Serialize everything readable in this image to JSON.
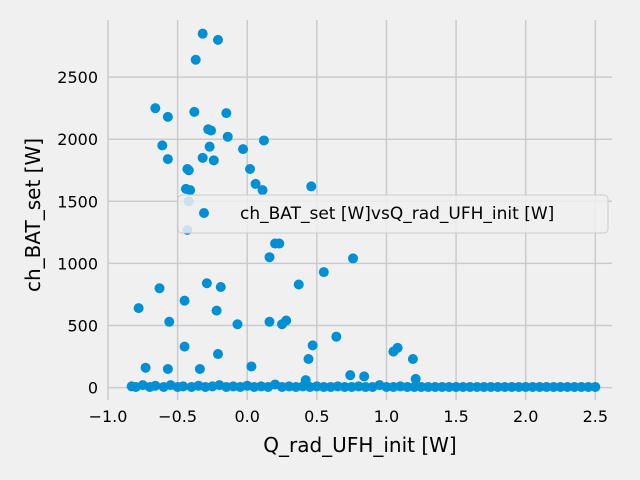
{
  "chart_data": {
    "type": "scatter",
    "title": "",
    "xlabel": "Q_rad_UFH_init [W]",
    "ylabel": "ch_BAT_set [W]",
    "xlim": [
      -1.0,
      2.62
    ],
    "ylim": [
      -100,
      2960
    ],
    "x_ticks": [
      -1.0,
      -0.5,
      0.0,
      0.5,
      1.0,
      1.5,
      2.0,
      2.5
    ],
    "x_tick_labels": [
      "−1.0",
      "−0.5",
      "0.0",
      "0.5",
      "1.0",
      "1.5",
      "2.0",
      "2.5"
    ],
    "y_ticks": [
      0,
      500,
      1000,
      1500,
      2000,
      2500
    ],
    "y_tick_labels": [
      "0",
      "500",
      "1000",
      "1500",
      "2000",
      "2500"
    ],
    "grid": true,
    "legend_position": "center-right",
    "marker_color": "#008fd5",
    "series": [
      {
        "name": "ch_BAT_set [W]vsQ_rad_UFH_init [W]",
        "points": [
          [
            -0.32,
            2850
          ],
          [
            -0.21,
            2800
          ],
          [
            -0.37,
            2640
          ],
          [
            -0.66,
            2250
          ],
          [
            -0.38,
            2220
          ],
          [
            -0.57,
            2180
          ],
          [
            -0.15,
            2210
          ],
          [
            -0.28,
            2080
          ],
          [
            -0.26,
            2070
          ],
          [
            -0.14,
            2020
          ],
          [
            0.12,
            1990
          ],
          [
            -0.61,
            1950
          ],
          [
            -0.27,
            1940
          ],
          [
            -0.03,
            1920
          ],
          [
            -0.57,
            1840
          ],
          [
            -0.32,
            1850
          ],
          [
            -0.24,
            1830
          ],
          [
            -0.43,
            1760
          ],
          [
            -0.42,
            1750
          ],
          [
            0.02,
            1760
          ],
          [
            0.06,
            1640
          ],
          [
            0.11,
            1590
          ],
          [
            0.46,
            1620
          ],
          [
            -0.44,
            1600
          ],
          [
            -0.41,
            1590
          ],
          [
            -0.42,
            1500
          ],
          [
            -0.43,
            1270
          ],
          [
            0.2,
            1160
          ],
          [
            0.23,
            1160
          ],
          [
            0.16,
            1050
          ],
          [
            0.76,
            1040
          ],
          [
            0.55,
            930
          ],
          [
            -0.29,
            840
          ],
          [
            0.37,
            830
          ],
          [
            -0.63,
            800
          ],
          [
            -0.19,
            810
          ],
          [
            -0.45,
            700
          ],
          [
            -0.78,
            640
          ],
          [
            -0.22,
            620
          ],
          [
            0.28,
            540
          ],
          [
            -0.56,
            530
          ],
          [
            0.16,
            530
          ],
          [
            -0.07,
            510
          ],
          [
            0.25,
            510
          ],
          [
            0.64,
            410
          ],
          [
            0.47,
            340
          ],
          [
            -0.45,
            330
          ],
          [
            1.08,
            320
          ],
          [
            1.05,
            290
          ],
          [
            -0.21,
            270
          ],
          [
            0.44,
            230
          ],
          [
            1.19,
            230
          ],
          [
            0.03,
            170
          ],
          [
            -0.73,
            160
          ],
          [
            -0.57,
            150
          ],
          [
            -0.34,
            150
          ],
          [
            0.74,
            100
          ],
          [
            0.84,
            90
          ],
          [
            1.21,
            70
          ],
          [
            0.42,
            60
          ],
          [
            -0.83,
            10
          ],
          [
            -0.8,
            5
          ],
          [
            -0.75,
            20
          ],
          [
            -0.7,
            5
          ],
          [
            -0.66,
            15
          ],
          [
            -0.6,
            5
          ],
          [
            -0.55,
            20
          ],
          [
            -0.5,
            5
          ],
          [
            -0.46,
            10
          ],
          [
            -0.4,
            5
          ],
          [
            -0.35,
            15
          ],
          [
            -0.3,
            5
          ],
          [
            -0.25,
            10
          ],
          [
            -0.2,
            20
          ],
          [
            -0.15,
            5
          ],
          [
            -0.1,
            10
          ],
          [
            -0.05,
            5
          ],
          [
            0.0,
            15
          ],
          [
            0.05,
            5
          ],
          [
            0.1,
            10
          ],
          [
            0.15,
            5
          ],
          [
            0.2,
            25
          ],
          [
            0.25,
            5
          ],
          [
            0.3,
            10
          ],
          [
            0.35,
            5
          ],
          [
            0.4,
            10
          ],
          [
            0.45,
            5
          ],
          [
            0.5,
            10
          ],
          [
            0.55,
            5
          ],
          [
            0.6,
            5
          ],
          [
            0.65,
            10
          ],
          [
            0.7,
            5
          ],
          [
            0.75,
            5
          ],
          [
            0.8,
            10
          ],
          [
            0.85,
            5
          ],
          [
            0.9,
            5
          ],
          [
            0.95,
            20
          ],
          [
            1.0,
            5
          ],
          [
            1.05,
            5
          ],
          [
            1.1,
            10
          ],
          [
            1.15,
            5
          ],
          [
            1.2,
            5
          ],
          [
            1.25,
            5
          ],
          [
            1.3,
            5
          ],
          [
            1.35,
            5
          ],
          [
            1.4,
            5
          ],
          [
            1.45,
            5
          ],
          [
            1.5,
            5
          ],
          [
            1.55,
            5
          ],
          [
            1.6,
            5
          ],
          [
            1.65,
            5
          ],
          [
            1.7,
            5
          ],
          [
            1.75,
            5
          ],
          [
            1.8,
            5
          ],
          [
            1.85,
            5
          ],
          [
            1.9,
            5
          ],
          [
            1.95,
            5
          ],
          [
            2.0,
            5
          ],
          [
            2.05,
            5
          ],
          [
            2.1,
            5
          ],
          [
            2.15,
            5
          ],
          [
            2.2,
            5
          ],
          [
            2.25,
            5
          ],
          [
            2.3,
            5
          ],
          [
            2.35,
            5
          ],
          [
            2.4,
            5
          ],
          [
            2.45,
            5
          ],
          [
            2.5,
            5
          ]
        ]
      }
    ]
  }
}
